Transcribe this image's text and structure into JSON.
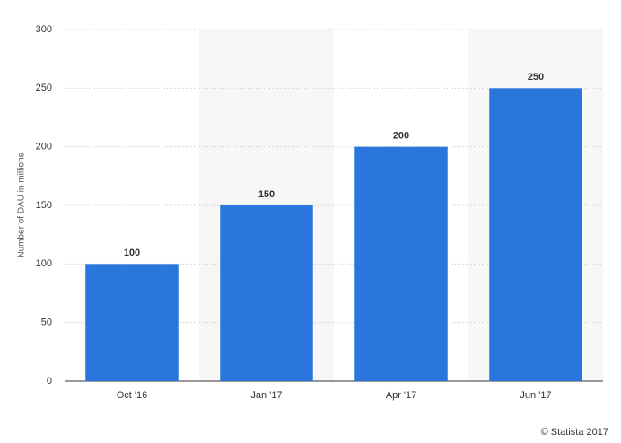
{
  "chart_data": {
    "type": "bar",
    "y_label": "Number of DAU in millions",
    "categories": [
      "Oct '16",
      "Jan '17",
      "Apr '17",
      "Jun '17"
    ],
    "values": [
      100,
      150,
      200,
      250
    ],
    "color": "#2a76dd",
    "ylim": [
      0,
      300
    ],
    "yticks": [
      0,
      50,
      100,
      150,
      200,
      250,
      300
    ],
    "grid": true,
    "credit": "© Statista 2017"
  }
}
